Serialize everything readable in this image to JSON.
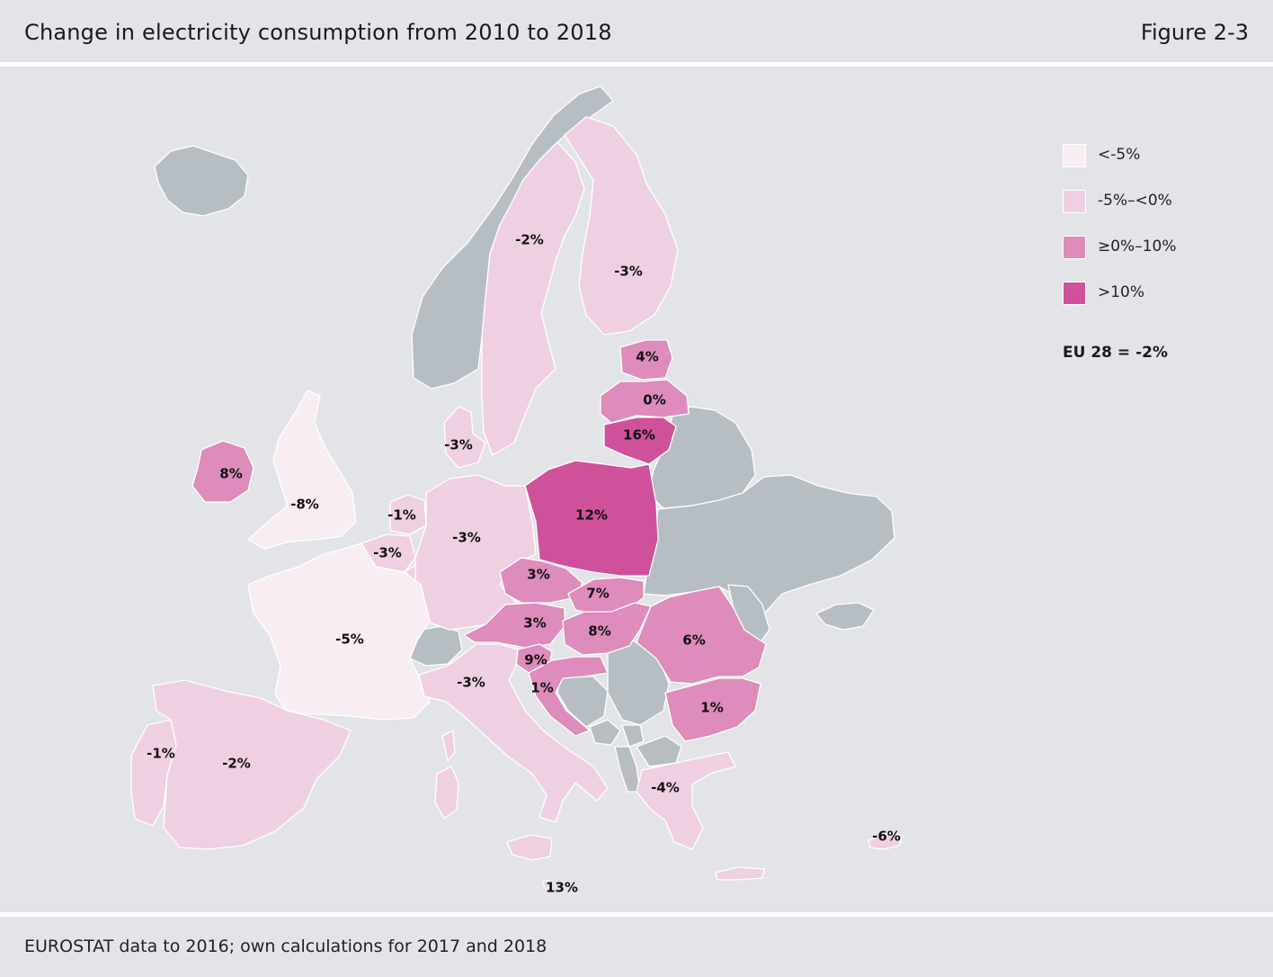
{
  "header": {
    "title": "Change in electricity consumption from 2010 to 2018",
    "figure_label": "Figure 2-3"
  },
  "legend": {
    "items": [
      {
        "label": "<-5%",
        "color": "#f7edf3"
      },
      {
        "label": "-5%–<0%",
        "color": "#efd0e2"
      },
      {
        "label": "≥0%–10%",
        "color": "#dd8cbb"
      },
      {
        "label": ">10%",
        "color": "#cf519b"
      }
    ],
    "eu_note": "EU 28 = -2%"
  },
  "colors": {
    "no_data": "#b7bec3",
    "background": "#e3e4e7",
    "lt_minus5": "#f7edf3",
    "minus5_to_0": "#efd0e2",
    "zero_to_10": "#dd8cbb",
    "gt_10": "#cf519b"
  },
  "map_values": {
    "sweden": "-2%",
    "finland": "-3%",
    "estonia": "4%",
    "latvia": "0%",
    "lithuania": "16%",
    "denmark": "-3%",
    "ireland": "8%",
    "united_kingdom": "-8%",
    "netherlands": "-1%",
    "belgium": "-3%",
    "germany": "-3%",
    "poland": "12%",
    "czechia": "3%",
    "slovakia": "7%",
    "austria": "3%",
    "hungary": "8%",
    "romania": "6%",
    "france": "-5%",
    "slovenia": "9%",
    "croatia": "1%",
    "italy": "-3%",
    "bulgaria": "1%",
    "portugal": "-1%",
    "spain": "-2%",
    "greece": "-4%",
    "cyprus": "-6%",
    "malta": "13%"
  },
  "footer": {
    "source": "EUROSTAT data to 2016; own calculations for 2017 and 2018"
  }
}
